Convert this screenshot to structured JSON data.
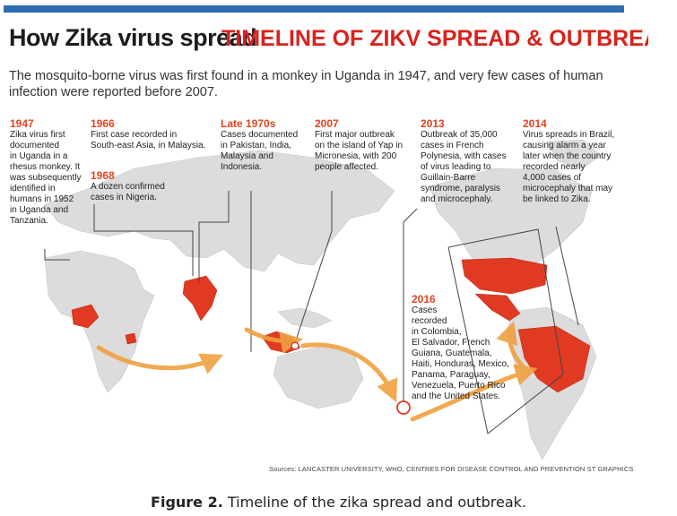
{
  "header": {
    "title": "How Zika virus spread",
    "overlay_title": "TIMELINE OF ZIKV SPREAD & OUTBREAI",
    "intro": "The mosquito-borne virus was first found in a monkey in Uganda in 1947, and very few cases of human infection were reported before 2007."
  },
  "timeline": [
    {
      "year": "1947",
      "text": [
        "Zika virus first",
        "documented",
        "in Uganda in a",
        "rhesus monkey. It",
        "was subsequently",
        "identified in",
        "humans in 1952",
        "in Uganda and",
        "Tanzania."
      ]
    },
    {
      "year": "1966",
      "text": [
        "First case recorded in",
        "South-east Asia, in Malaysia."
      ]
    },
    {
      "year": "1968",
      "text": [
        "A dozen confirmed",
        "cases in Nigeria."
      ]
    },
    {
      "year": "Late 1970s",
      "text": [
        "Cases documented",
        "in Pakistan, India,",
        "Malaysia and",
        "Indonesia."
      ]
    },
    {
      "year": "2007",
      "text": [
        "First major outbreak",
        "on the island of Yap in",
        "Micronesia, with 200",
        "people affected."
      ]
    },
    {
      "year": "2013",
      "text": [
        "Outbreak of 35,000",
        "cases in French",
        "Polynesia, with cases",
        "of virus leading to",
        "Guillain-Barre",
        "syndrome, paralysis",
        "and microcephaly."
      ]
    },
    {
      "year": "2014",
      "text": [
        "Virus spreads in Brazil,",
        "causing alarm a year",
        "later when the country",
        "recorded nearly",
        "4,000 cases of",
        "microcephaly that may",
        "be linked to Zika."
      ]
    },
    {
      "year": "2016",
      "text": [
        "Cases",
        "recorded",
        "in Colombia,",
        "El Salvador, French",
        "Guiana, Guatemala,",
        "Haiti, Honduras, Mexico,",
        "Panama, Paraguay,",
        "Venezuela, Puerto Rico",
        "and the United States."
      ]
    }
  ],
  "source": "Sources: LANCASTER UNIVERSITY, WHO, CENTRES FOR DISEASE CONTROL AND PREVENTION   ST GRAPHICS",
  "caption": {
    "label": "Figure 2.",
    "text": " Timeline of the zika spread and outbreak."
  },
  "colors": {
    "accent": "#e0441f",
    "highlight": "#e03a22",
    "land": "#dcdcdc",
    "arrow": "#f0a040",
    "bar": "#2f6db3"
  }
}
